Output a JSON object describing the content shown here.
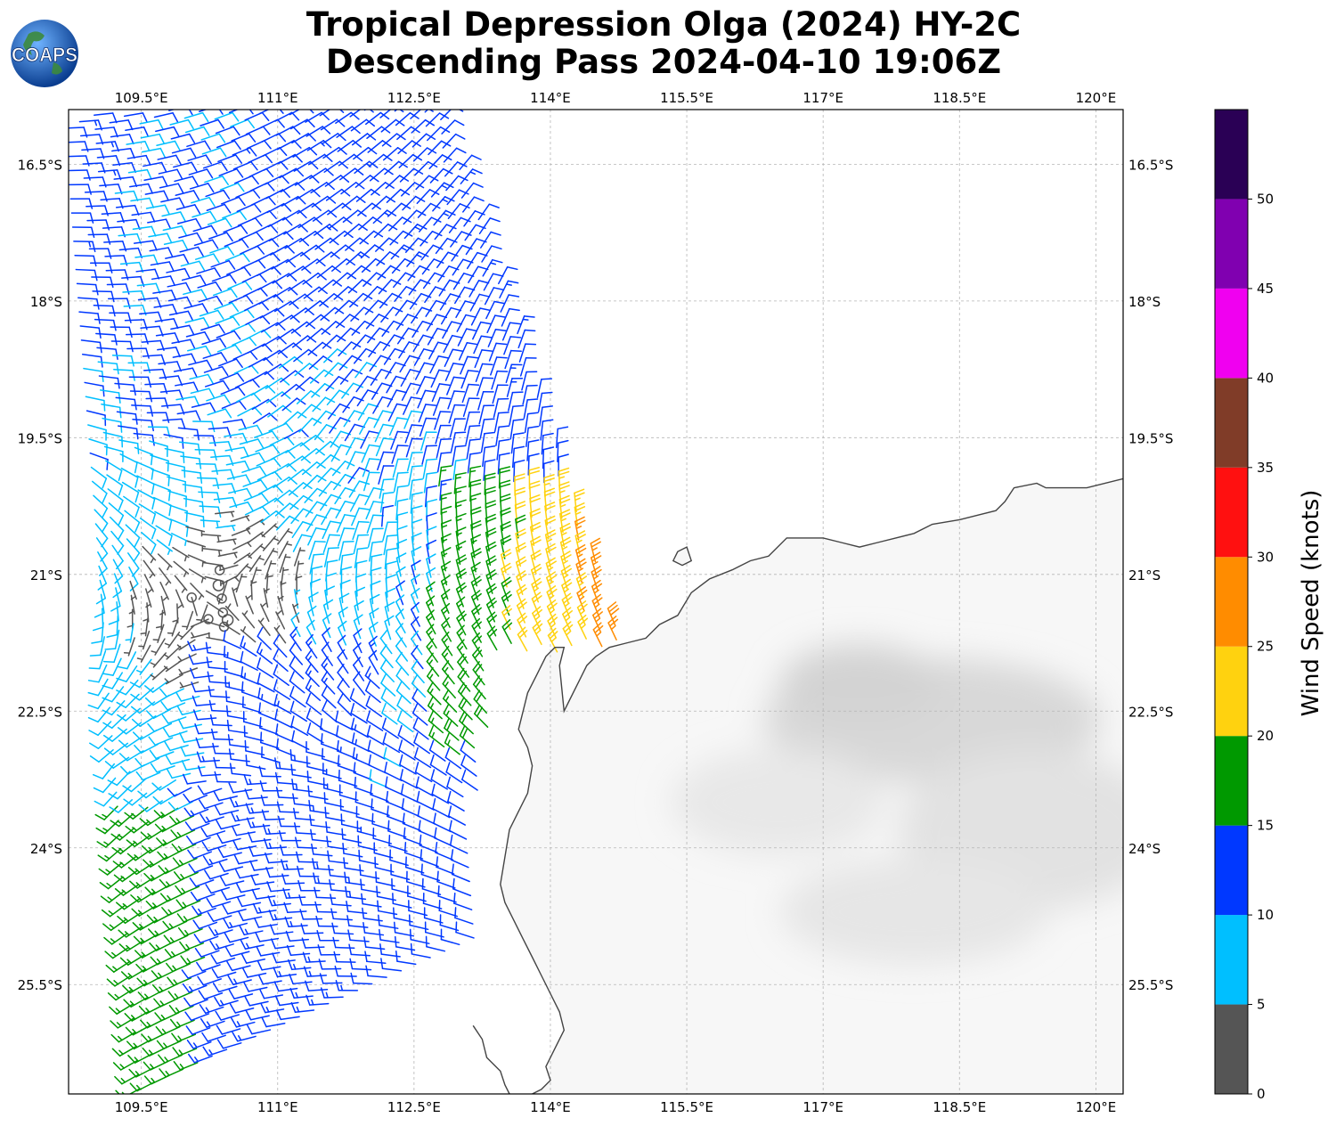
{
  "title": {
    "line1": "Tropical Depression Olga (2024) HY-2C",
    "line2": "Descending Pass 2024-04-10 19:06Z"
  },
  "logo": {
    "text": "COAPS",
    "icon": "globe-icon"
  },
  "map": {
    "lon_range": [
      108.7,
      120.3
    ],
    "lat_range": [
      -26.7,
      -15.9
    ],
    "lon_ticks": [
      {
        "value": 109.5,
        "label": "109.5°E"
      },
      {
        "value": 111,
        "label": "111°E"
      },
      {
        "value": 112.5,
        "label": "112.5°E"
      },
      {
        "value": 114,
        "label": "114°E"
      },
      {
        "value": 115.5,
        "label": "115.5°E"
      },
      {
        "value": 117,
        "label": "117°E"
      },
      {
        "value": 118.5,
        "label": "118.5°E"
      },
      {
        "value": 120,
        "label": "120°E"
      }
    ],
    "lat_ticks": [
      {
        "value": -16.5,
        "label": "16.5°S"
      },
      {
        "value": -18,
        "label": "18°S"
      },
      {
        "value": -19.5,
        "label": "19.5°S"
      },
      {
        "value": -21,
        "label": "21°S"
      },
      {
        "value": -22.5,
        "label": "22.5°S"
      },
      {
        "value": -24,
        "label": "24°S"
      },
      {
        "value": -25.5,
        "label": "25.5°S"
      }
    ],
    "storm_center": {
      "lon": 110.3,
      "lat": -21.3
    },
    "coastline": [
      [
        120.3,
        -19.95
      ],
      [
        119.9,
        -20.05
      ],
      [
        119.6,
        -20.05
      ],
      [
        119.45,
        -20.05
      ],
      [
        119.35,
        -20.0
      ],
      [
        119.1,
        -20.05
      ],
      [
        119.0,
        -20.2
      ],
      [
        118.9,
        -20.3
      ],
      [
        118.7,
        -20.35
      ],
      [
        118.5,
        -20.4
      ],
      [
        118.2,
        -20.45
      ],
      [
        118.0,
        -20.55
      ],
      [
        117.8,
        -20.6
      ],
      [
        117.6,
        -20.65
      ],
      [
        117.4,
        -20.7
      ],
      [
        117.2,
        -20.65
      ],
      [
        117.0,
        -20.6
      ],
      [
        116.8,
        -20.6
      ],
      [
        116.6,
        -20.6
      ],
      [
        116.4,
        -20.8
      ],
      [
        116.2,
        -20.85
      ],
      [
        116.0,
        -20.95
      ],
      [
        115.75,
        -21.05
      ],
      [
        115.55,
        -21.2
      ],
      [
        115.4,
        -21.45
      ],
      [
        115.2,
        -21.55
      ],
      [
        115.05,
        -21.7
      ],
      [
        114.85,
        -21.75
      ],
      [
        114.65,
        -21.8
      ],
      [
        114.5,
        -21.9
      ],
      [
        114.4,
        -22.0
      ],
      [
        114.3,
        -22.2
      ],
      [
        114.2,
        -22.4
      ],
      [
        114.15,
        -22.5
      ],
      [
        114.1,
        -22.0
      ],
      [
        114.15,
        -21.8
      ],
      [
        114.05,
        -21.8
      ],
      [
        113.95,
        -21.9
      ],
      [
        113.85,
        -22.1
      ],
      [
        113.75,
        -22.3
      ],
      [
        113.7,
        -22.5
      ],
      [
        113.65,
        -22.7
      ],
      [
        113.75,
        -22.9
      ],
      [
        113.8,
        -23.1
      ],
      [
        113.75,
        -23.4
      ],
      [
        113.65,
        -23.6
      ],
      [
        113.55,
        -23.8
      ],
      [
        113.5,
        -24.1
      ],
      [
        113.45,
        -24.4
      ],
      [
        113.5,
        -24.6
      ],
      [
        113.6,
        -24.8
      ],
      [
        113.7,
        -25.0
      ],
      [
        113.8,
        -25.2
      ],
      [
        113.9,
        -25.4
      ],
      [
        114.0,
        -25.6
      ],
      [
        114.1,
        -25.8
      ],
      [
        114.15,
        -26.0
      ],
      [
        114.05,
        -26.2
      ],
      [
        113.95,
        -26.4
      ],
      [
        114.0,
        -26.55
      ],
      [
        113.9,
        -26.65
      ],
      [
        113.8,
        -26.7
      ]
    ],
    "island": [
      [
        115.4,
        -20.75
      ],
      [
        115.5,
        -20.7
      ],
      [
        115.55,
        -20.85
      ],
      [
        115.45,
        -20.9
      ],
      [
        115.35,
        -20.85
      ],
      [
        115.4,
        -20.75
      ]
    ],
    "peninsula": [
      [
        113.15,
        -25.95
      ],
      [
        113.25,
        -26.1
      ],
      [
        113.3,
        -26.3
      ],
      [
        113.45,
        -26.45
      ],
      [
        113.5,
        -26.6
      ],
      [
        113.55,
        -26.7
      ]
    ],
    "colors": {
      "land": "#f7f7f7",
      "grid": "#b0b0b0",
      "coast": "#444444"
    }
  },
  "colorbar": {
    "label": "Wind Speed (knots)",
    "ticks": [
      "0",
      "5",
      "10",
      "15",
      "20",
      "25",
      "30",
      "35",
      "40",
      "45",
      "50"
    ],
    "bins": [
      {
        "min": 0,
        "max": 5,
        "color": "#555555"
      },
      {
        "min": 5,
        "max": 10,
        "color": "#00bfff"
      },
      {
        "min": 10,
        "max": 15,
        "color": "#0038ff"
      },
      {
        "min": 15,
        "max": 20,
        "color": "#009900"
      },
      {
        "min": 20,
        "max": 25,
        "color": "#ffd20f"
      },
      {
        "min": 25,
        "max": 30,
        "color": "#ff8c00"
      },
      {
        "min": 30,
        "max": 35,
        "color": "#ff1010"
      },
      {
        "min": 35,
        "max": 40,
        "color": "#803c28"
      },
      {
        "min": 40,
        "max": 45,
        "color": "#f000f0"
      },
      {
        "min": 45,
        "max": 50,
        "color": "#8000b0"
      },
      {
        "min": 50,
        "max": 55,
        "color": "#2a0055"
      }
    ]
  }
}
